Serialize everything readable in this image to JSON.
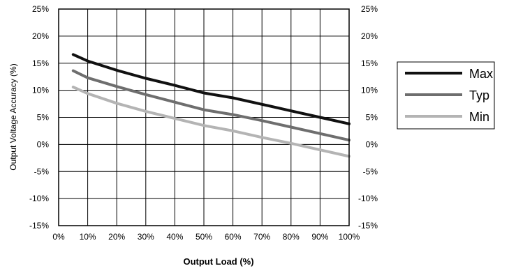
{
  "chart_data": {
    "type": "line",
    "title": "",
    "xlabel": "Output Load (%)",
    "ylabel": "Output Voltage Accuracy (%)",
    "xlim": [
      0,
      100
    ],
    "ylim": [
      -15,
      25
    ],
    "x_ticks": [
      0,
      10,
      20,
      30,
      40,
      50,
      60,
      70,
      80,
      90,
      100
    ],
    "y_ticks": [
      -15,
      -10,
      -5,
      0,
      5,
      10,
      15,
      20,
      25
    ],
    "x_tick_labels": [
      "0%",
      "10%",
      "20%",
      "30%",
      "40%",
      "50%",
      "60%",
      "70%",
      "80%",
      "90%",
      "100%"
    ],
    "y_tick_labels": [
      "-15%",
      "-10%",
      "-5%",
      "0%",
      "5%",
      "10%",
      "15%",
      "20%",
      "25%"
    ],
    "grid": true,
    "legend_position": "right",
    "series": [
      {
        "name": "Max",
        "color": "#111111",
        "x": [
          5,
          10,
          20,
          30,
          40,
          50,
          60,
          70,
          80,
          90,
          100
        ],
        "y": [
          16.6,
          15.4,
          13.7,
          12.2,
          10.9,
          9.5,
          8.6,
          7.4,
          6.2,
          5.0,
          3.8
        ]
      },
      {
        "name": "Typ",
        "color": "#6e6e6e",
        "x": [
          5,
          10,
          20,
          30,
          40,
          50,
          60,
          70,
          80,
          90,
          100
        ],
        "y": [
          13.6,
          12.3,
          10.7,
          9.2,
          7.8,
          6.4,
          5.5,
          4.4,
          3.2,
          2.0,
          0.8
        ]
      },
      {
        "name": "Min",
        "color": "#b4b4b4",
        "x": [
          5,
          10,
          20,
          30,
          40,
          50,
          60,
          70,
          80,
          90,
          100
        ],
        "y": [
          10.6,
          9.4,
          7.6,
          6.1,
          4.8,
          3.5,
          2.5,
          1.3,
          0.2,
          -1.0,
          -2.2
        ]
      }
    ]
  }
}
